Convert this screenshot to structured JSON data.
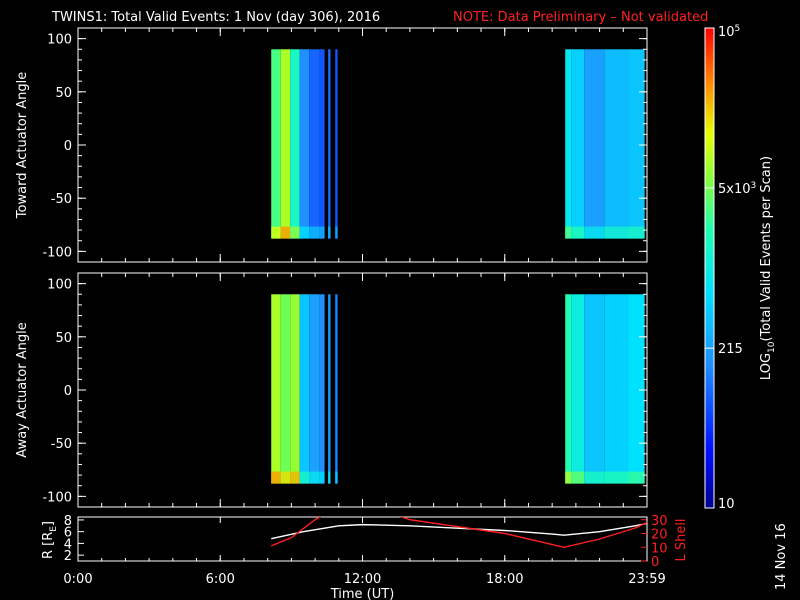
{
  "title": {
    "main": "TWINS1: Total Valid Events:  1 Nov (day 306), 2016",
    "note": "NOTE: Data Preliminary – Not validated"
  },
  "colors": {
    "note": "#ff2020",
    "radius_line": "#ffffff",
    "lshell_line": "#ff2020",
    "axes": "#ffffff",
    "background": "#000000"
  },
  "chart_data": [
    {
      "type": "heatmap",
      "name": "toward",
      "ylabel": "Toward Actuator Angle",
      "ylim": [
        -110,
        110
      ],
      "yticks": [
        -100,
        -50,
        0,
        50,
        100
      ],
      "xlim": [
        0,
        24
      ],
      "angle_range": [
        -88,
        90
      ],
      "blocks": [
        {
          "x0": 8.15,
          "x1": 8.55,
          "level": 0.62
        },
        {
          "x0": 8.55,
          "x1": 8.95,
          "level": 0.72
        },
        {
          "x0": 8.95,
          "x1": 9.35,
          "level": 0.55
        },
        {
          "x0": 9.35,
          "x1": 9.75,
          "level": 0.3
        },
        {
          "x0": 9.75,
          "x1": 10.2,
          "level": 0.24
        },
        {
          "x0": 10.2,
          "x1": 10.4,
          "level": 0.22
        },
        {
          "x0": 10.55,
          "x1": 10.65,
          "level": 0.25
        },
        {
          "x0": 10.85,
          "x1": 10.95,
          "level": 0.22
        },
        {
          "x0": 20.55,
          "x1": 20.8,
          "level": 0.48
        },
        {
          "x0": 20.8,
          "x1": 21.35,
          "level": 0.42
        },
        {
          "x0": 21.35,
          "x1": 22.2,
          "level": 0.33
        },
        {
          "x0": 22.2,
          "x1": 23.2,
          "level": 0.38
        },
        {
          "x0": 23.2,
          "x1": 23.9,
          "level": 0.4
        }
      ]
    },
    {
      "type": "heatmap",
      "name": "away",
      "ylabel": "Away Actuator Angle",
      "ylim": [
        -110,
        110
      ],
      "yticks": [
        -100,
        -50,
        0,
        50,
        100
      ],
      "xlim": [
        0,
        24
      ],
      "angle_range": [
        -88,
        90
      ],
      "blocks": [
        {
          "x0": 8.15,
          "x1": 8.55,
          "level": 0.72
        },
        {
          "x0": 8.55,
          "x1": 8.95,
          "level": 0.66
        },
        {
          "x0": 8.95,
          "x1": 9.35,
          "level": 0.7
        },
        {
          "x0": 9.35,
          "x1": 9.75,
          "level": 0.4
        },
        {
          "x0": 9.75,
          "x1": 10.2,
          "level": 0.33
        },
        {
          "x0": 10.2,
          "x1": 10.4,
          "level": 0.3
        },
        {
          "x0": 10.55,
          "x1": 10.65,
          "level": 0.32
        },
        {
          "x0": 10.85,
          "x1": 10.95,
          "level": 0.28
        },
        {
          "x0": 20.55,
          "x1": 20.8,
          "level": 0.58
        },
        {
          "x0": 20.8,
          "x1": 21.35,
          "level": 0.5
        },
        {
          "x0": 21.35,
          "x1": 22.2,
          "level": 0.4
        },
        {
          "x0": 22.2,
          "x1": 23.2,
          "level": 0.42
        },
        {
          "x0": 23.2,
          "x1": 23.9,
          "level": 0.45
        }
      ]
    },
    {
      "type": "line",
      "name": "orbit",
      "ylabel": "R [R",
      "ylabel_sub": "E",
      "ylabel_end": "]",
      "ylim": [
        1,
        8.5
      ],
      "yticks": [
        2,
        4,
        6,
        8
      ],
      "y2label": "L Shell",
      "y2lim": [
        0,
        32
      ],
      "y2ticks": [
        0,
        10,
        20,
        30
      ],
      "xlim": [
        0,
        24
      ],
      "xticks": [
        0,
        6,
        12,
        18,
        24
      ],
      "xticklabels": [
        "0:00",
        "6:00",
        "12:00",
        "18:00",
        "23:59"
      ],
      "xlabel": "Time (UT)",
      "series": [
        {
          "axis": "left",
          "x": [
            8.15,
            9.5,
            11.0,
            12.0,
            14.0,
            16.0,
            18.0,
            20.0,
            20.5,
            22.0,
            23.5,
            24.0
          ],
          "y": [
            4.8,
            6.0,
            7.0,
            7.2,
            7.0,
            6.6,
            6.2,
            5.6,
            5.4,
            6.0,
            7.0,
            7.4
          ]
        },
        {
          "axis": "right",
          "x": [
            8.15,
            9.0,
            10.0,
            10.3,
            13.5,
            14.0,
            18.0,
            20.5,
            22.0,
            23.5,
            24.0
          ],
          "y": [
            11,
            17,
            30,
            33,
            33,
            30,
            20,
            10,
            16,
            24,
            28
          ]
        }
      ]
    }
  ],
  "colorbar": {
    "label_prefix": "LOG",
    "label_sub": "10",
    "label_suffix": "(Total Valid Events per Scan)",
    "ticks": [
      {
        "text": "10",
        "sup": "",
        "pos": 0
      },
      {
        "text": "215",
        "sup": "",
        "pos": 0.333
      },
      {
        "text": "5x10",
        "sup": "3",
        "pos": 0.667
      },
      {
        "text": "10",
        "sup": "5",
        "pos": 1
      }
    ]
  },
  "date_stamp": "14 Nov 16"
}
